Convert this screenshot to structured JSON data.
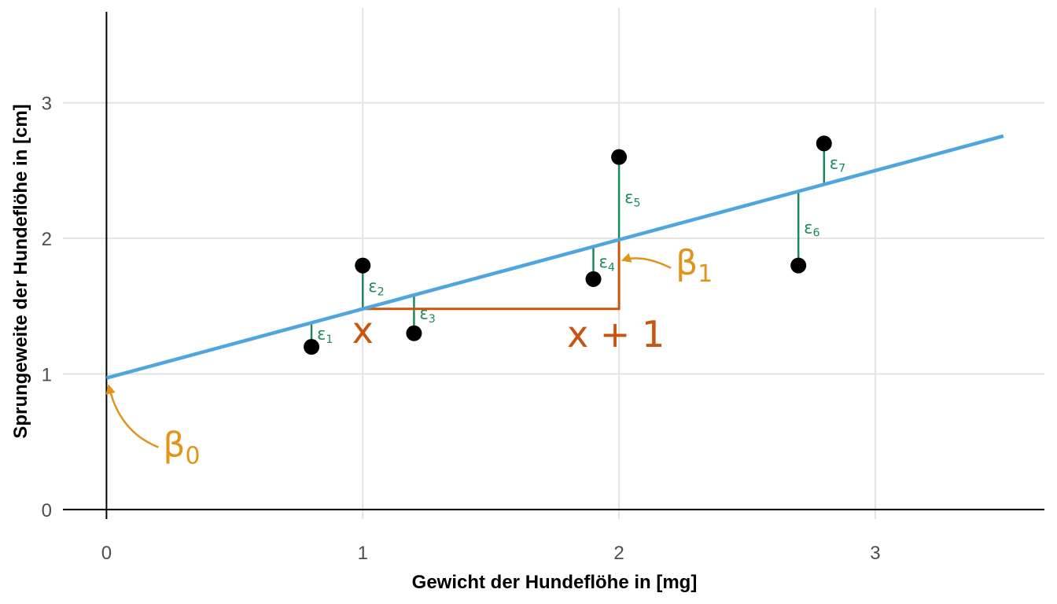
{
  "chart_data": {
    "type": "scatter",
    "xlabel": "Gewicht der Hundeflöhe in [mg]",
    "ylabel": "Sprungeweite der Hundeflöhe in [cm]",
    "xlim": [
      -0.17,
      3.66
    ],
    "ylim": [
      -0.07,
      3.7
    ],
    "x_ticks": [
      0,
      1,
      2,
      3
    ],
    "y_ticks": [
      0,
      1,
      2,
      3
    ],
    "x_tick_labels": [
      "0",
      "1",
      "2",
      "3"
    ],
    "y_tick_labels": [
      "0",
      "1",
      "2",
      "3"
    ],
    "grid": true,
    "points": [
      {
        "x": 0.8,
        "y": 1.2
      },
      {
        "x": 1.0,
        "y": 1.8
      },
      {
        "x": 1.2,
        "y": 1.3
      },
      {
        "x": 1.9,
        "y": 1.7
      },
      {
        "x": 2.0,
        "y": 2.6
      },
      {
        "x": 2.7,
        "y": 1.8
      },
      {
        "x": 2.8,
        "y": 2.7
      }
    ],
    "regression_line": {
      "intercept": 0.97,
      "slope": 0.51,
      "x_range": [
        0,
        3.5
      ],
      "color": "#4fa6df"
    },
    "residuals": {
      "color": "#1b8a5a",
      "labels": [
        {
          "base": "ε",
          "sub": "1"
        },
        {
          "base": "ε",
          "sub": "2"
        },
        {
          "base": "ε",
          "sub": "3"
        },
        {
          "base": "ε",
          "sub": "4"
        },
        {
          "base": "ε",
          "sub": "5"
        },
        {
          "base": "ε",
          "sub": "6"
        },
        {
          "base": "ε",
          "sub": "7"
        }
      ]
    },
    "slope_triangle": {
      "x_from": 1,
      "x_to": 2,
      "color": "#c9540d",
      "label_x": "x",
      "label_x_plus_1": "x + 1"
    },
    "annotations": {
      "color": "#e0941a",
      "beta0": {
        "base": "β",
        "sub": "0"
      },
      "beta1": {
        "base": "β",
        "sub": "1"
      }
    },
    "colors": {
      "points": "#000000",
      "grid": "#e3e3e3",
      "axis": "#000000"
    }
  }
}
